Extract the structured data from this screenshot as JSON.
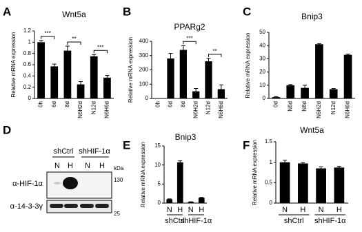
{
  "chart_data": [
    {
      "type": "bar",
      "panel": "A",
      "title": "Wnt5a",
      "ylabel": "Relative mRNA expression",
      "color": "#000000",
      "categories": [
        "0h",
        "6d",
        "8d",
        "N6H2d",
        "N12d",
        "N6H6d"
      ],
      "values": [
        1.0,
        0.57,
        0.85,
        0.25,
        0.75,
        0.37
      ],
      "errors": [
        0.03,
        0.04,
        0.08,
        0.05,
        0.03,
        0.04
      ],
      "ylim": [
        0,
        1.2
      ],
      "yticks": [
        0,
        0.2,
        0.4,
        0.6,
        0.8,
        1,
        1.2
      ],
      "significance": [
        {
          "label": "***",
          "between": [
            "0h",
            "6d"
          ]
        },
        {
          "label": "**",
          "between": [
            "8d",
            "N6H2d"
          ]
        },
        {
          "label": "***",
          "between": [
            "N12d",
            "N6H6d"
          ]
        }
      ]
    },
    {
      "type": "bar",
      "panel": "B",
      "title": "PPARg2",
      "ylabel": "Relative mRNA expression",
      "color": "#000000",
      "categories": [
        "0h",
        "6d",
        "8d",
        "N6H2d",
        "N12d",
        "N6H6d"
      ],
      "values": [
        0,
        280,
        340,
        50,
        260,
        65
      ],
      "errors": [
        0,
        35,
        30,
        20,
        20,
        30
      ],
      "ylim": [
        0,
        400
      ],
      "yticks": [
        0,
        100,
        200,
        300,
        400
      ],
      "significance": [
        {
          "label": "***",
          "between": [
            "8d",
            "N6H2d"
          ]
        },
        {
          "label": "**",
          "between": [
            "N12d",
            "N6H6d"
          ]
        }
      ]
    },
    {
      "type": "bar",
      "panel": "C",
      "title": "Bnip3",
      "ylabel": "Relative mRNA expression",
      "color": "#000000",
      "categories": [
        "0d",
        "N6d",
        "N8d",
        "N6H2d",
        "N12d",
        "N6H6d"
      ],
      "values": [
        1,
        10,
        8,
        41,
        7,
        33
      ],
      "errors": [
        0.3,
        0.5,
        2,
        0.5,
        0.5,
        0.5
      ],
      "ylim": [
        0,
        50
      ],
      "yticks": [
        0,
        10,
        20,
        30,
        40,
        50
      ]
    },
    {
      "type": "bar",
      "panel": "E",
      "title": "Bnip3",
      "ylabel": "Relative mRNA expression",
      "color": "#000000",
      "categories": [
        "N",
        "H",
        "N",
        "H"
      ],
      "groups": [
        "shCtrl",
        "shHIF-1α"
      ],
      "values": [
        1,
        10.7,
        0.3,
        1.4
      ],
      "errors": [
        0.1,
        0.4,
        0.05,
        0.1
      ],
      "ylim": [
        0,
        15
      ],
      "yticks": [
        0,
        5,
        10,
        15
      ]
    },
    {
      "type": "bar",
      "panel": "F",
      "title": "Wnt5a",
      "ylabel": "Relative mRNA expression",
      "color": "#000000",
      "categories": [
        "N",
        "H",
        "N",
        "H"
      ],
      "groups": [
        "shCtrl",
        "shHIF-1α"
      ],
      "values": [
        1.0,
        0.97,
        0.85,
        0.87
      ],
      "errors": [
        0.05,
        0.02,
        0.04,
        0.03
      ],
      "ylim": [
        0,
        1.5
      ],
      "yticks": [
        0,
        0.5,
        1,
        1.5
      ]
    }
  ],
  "blot": {
    "panel": "D",
    "groups": [
      "shCtrl",
      "shHIF-1α"
    ],
    "lanes": [
      "N",
      "H",
      "N",
      "H"
    ],
    "rows": [
      "α-HIF-1α",
      "α-14-3-3γ"
    ],
    "unit": "kDa",
    "markers": [
      130,
      25
    ]
  }
}
